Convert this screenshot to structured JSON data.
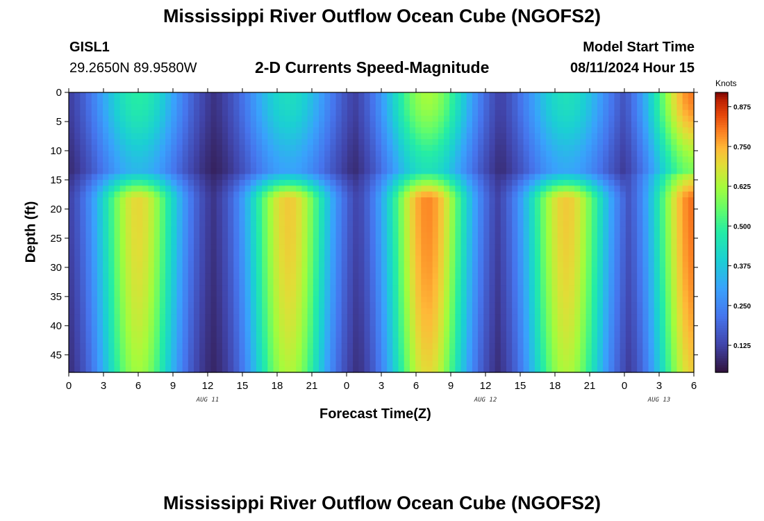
{
  "header": {
    "title": "Mississippi River Outflow Ocean Cube (NGOFS2)",
    "station_id": "GISL1",
    "station_coords": "29.2650N  89.9580W",
    "subtitle": "2-D Currents Speed-Magnitude",
    "model_label": "Model Start Time",
    "model_time": "08/11/2024 Hour 15"
  },
  "footer": {
    "title": "Mississippi River Outflow Ocean Cube (NGOFS2)"
  },
  "chart_data": {
    "type": "heatmap",
    "xlabel": "Forecast Time(Z)",
    "ylabel": "Depth (ft)",
    "x_tick_labels": [
      "0",
      "3",
      "6",
      "9",
      "12",
      "15",
      "18",
      "21",
      "0",
      "3",
      "6",
      "9",
      "12",
      "15",
      "18",
      "21",
      "0",
      "3",
      "6"
    ],
    "x_range_hours": [
      0,
      54
    ],
    "date_labels": [
      {
        "label": "AUG 11",
        "hour": 12
      },
      {
        "label": "AUG 12",
        "hour": 36
      },
      {
        "label": "AUG 13",
        "hour": 51
      }
    ],
    "y_tick_labels": [
      "0",
      "5",
      "10",
      "15",
      "20",
      "25",
      "30",
      "35",
      "40",
      "45"
    ],
    "y_range_ft": [
      0,
      48
    ],
    "y_inverted": true,
    "colorbar": {
      "unit": "Knots",
      "range": [
        0.04,
        0.92
      ],
      "tick_labels": [
        "0.125",
        "0.250",
        "0.375",
        "0.500",
        "0.625",
        "0.750",
        "0.875"
      ],
      "ticks": [
        0.125,
        0.25,
        0.375,
        0.5,
        0.625,
        0.75,
        0.875
      ]
    },
    "surface_layer": {
      "depth_range_ft": [
        0,
        16
      ],
      "peaks": [
        {
          "hour": 6,
          "speed": 0.48
        },
        {
          "hour": 19,
          "speed": 0.43
        },
        {
          "hour": 31,
          "speed": 0.62
        },
        {
          "hour": 43,
          "speed": 0.44
        },
        {
          "hour": 54,
          "speed": 0.8
        }
      ]
    },
    "deep_layer": {
      "depth_range_ft": [
        17,
        48
      ],
      "peaks": [
        {
          "hour": 6,
          "speed": 0.7
        },
        {
          "hour": 19,
          "speed": 0.72
        },
        {
          "hour": 31,
          "speed": 0.79
        },
        {
          "hour": 43,
          "speed": 0.72
        },
        {
          "hour": 54,
          "speed": 0.81
        }
      ]
    },
    "minimum_speed": 0.06
  }
}
